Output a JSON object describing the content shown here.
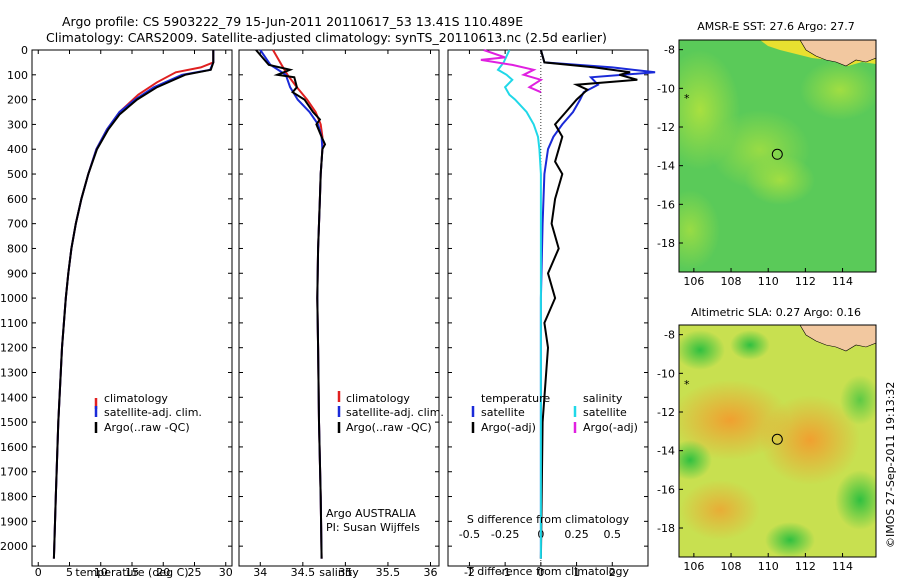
{
  "header": {
    "line1": "Argo profile: CS 5903222_79 15-Jun-2011 20110617_53 13.41S 110.489E",
    "line2": "Climatology: CARS2009. Satellite-adjusted climatology: synTS_20110613.nc (2.5d earlier)"
  },
  "colors": {
    "climatology": "#e02020",
    "satellite": "#1a2ad8",
    "argo": "#000000",
    "salinity_satellite": "#20d8e8",
    "salinity_argo": "#e020e0"
  },
  "footer": {
    "credit": "©IMOS 27-Sep-2011 19:13:32"
  },
  "chart_data": [
    {
      "id": "temperature",
      "type": "line",
      "xlabel": "temperature (deg C)",
      "ylabel": "",
      "xlim": [
        -1,
        31
      ],
      "ylim": [
        2080,
        0
      ],
      "xticks": [
        0,
        5,
        10,
        15,
        20,
        25,
        30
      ],
      "yticks": [
        0,
        100,
        200,
        300,
        400,
        500,
        600,
        700,
        800,
        900,
        1000,
        1100,
        1200,
        1300,
        1400,
        1500,
        1600,
        1700,
        1800,
        1900,
        2000
      ],
      "legend": [
        "climatology",
        "satellite-adj. clim.",
        "Argo(..raw -QC)"
      ],
      "series": [
        {
          "name": "climatology",
          "color": "#e02020",
          "depth": [
            0,
            50,
            70,
            90,
            130,
            180,
            250,
            320,
            400,
            500,
            600,
            700,
            800,
            900,
            1000,
            1200,
            1500,
            1800,
            2050
          ],
          "values": [
            28,
            28,
            26,
            22,
            19,
            16,
            13,
            11,
            9.3,
            8,
            6.9,
            6,
            5.3,
            4.8,
            4.4,
            3.8,
            3.2,
            2.8,
            2.5
          ]
        },
        {
          "name": "satellite-adj. clim.",
          "color": "#1a2ad8",
          "depth": [
            0,
            50,
            80,
            100,
            150,
            200,
            250,
            320,
            400,
            500,
            600,
            700,
            800,
            900,
            1000,
            1200,
            1500,
            1800,
            2050
          ],
          "values": [
            28,
            28,
            27.5,
            23,
            18.5,
            15.5,
            13,
            11,
            9.3,
            8,
            6.9,
            6,
            5.3,
            4.8,
            4.4,
            3.8,
            3.2,
            2.8,
            2.5
          ]
        },
        {
          "name": "Argo(..raw -QC)",
          "color": "#000000",
          "depth": [
            0,
            50,
            80,
            100,
            150,
            200,
            260,
            320,
            400,
            500,
            600,
            700,
            800,
            900,
            1000,
            1200,
            1500,
            1800,
            2050
          ],
          "values": [
            28,
            28,
            27.6,
            23.5,
            19,
            15.8,
            13,
            11.2,
            9.4,
            8,
            6.9,
            6,
            5.3,
            4.8,
            4.4,
            3.8,
            3.2,
            2.8,
            2.5
          ]
        }
      ]
    },
    {
      "id": "salinity",
      "type": "line",
      "xlabel": "salinity",
      "xlim": [
        33.75,
        36.1
      ],
      "ylim": [
        2080,
        0
      ],
      "xticks": [
        34,
        34.5,
        35,
        35.5,
        36
      ],
      "legend": [
        "climatology",
        "satellite-adj. clim.",
        "Argo(..raw -QC)"
      ],
      "annotations": [
        "Argo AUSTRALIA",
        "PI: Susan Wijffels"
      ],
      "series": [
        {
          "name": "climatology",
          "color": "#e02020",
          "depth": [
            0,
            60,
            100,
            150,
            200,
            250,
            300,
            350,
            400,
            500,
            600,
            800,
            1000,
            1200,
            1500,
            1800,
            2050
          ],
          "values": [
            34.15,
            34.25,
            34.32,
            34.43,
            34.55,
            34.65,
            34.71,
            34.73,
            34.73,
            34.71,
            34.7,
            34.68,
            34.67,
            34.68,
            34.69,
            34.71,
            34.72
          ]
        },
        {
          "name": "satellite-adj. clim.",
          "color": "#1a2ad8",
          "depth": [
            0,
            60,
            100,
            150,
            200,
            250,
            300,
            350,
            400,
            500,
            600,
            800,
            1000,
            1200,
            1500,
            1800,
            2050
          ],
          "values": [
            34.0,
            34.12,
            34.3,
            34.35,
            34.44,
            34.58,
            34.68,
            34.72,
            34.73,
            34.71,
            34.7,
            34.68,
            34.67,
            34.68,
            34.69,
            34.71,
            34.72
          ]
        },
        {
          "name": "Argo(..raw -QC)",
          "color": "#000000",
          "depth": [
            0,
            60,
            80,
            100,
            110,
            150,
            170,
            200,
            250,
            280,
            300,
            350,
            380,
            400,
            500,
            600,
            800,
            1000,
            1200,
            1500,
            1800,
            2050
          ],
          "values": [
            33.95,
            34.1,
            34.35,
            34.2,
            34.4,
            34.43,
            34.38,
            34.52,
            34.62,
            34.7,
            34.66,
            34.72,
            34.76,
            34.73,
            34.71,
            34.7,
            34.68,
            34.67,
            34.68,
            34.69,
            34.71,
            34.72
          ]
        }
      ]
    },
    {
      "id": "difference",
      "type": "line",
      "xlabel": "T difference from climatology",
      "xlabel_top": "S difference from climatology",
      "xlim": [
        -2.6,
        3.0
      ],
      "ylim": [
        2080,
        0
      ],
      "xticks": [
        -2,
        -1,
        0,
        1,
        2
      ],
      "xticks_s": [
        -0.5,
        -0.25,
        0,
        0.25,
        0.5
      ],
      "legend_headers": [
        "temperature",
        "salinity"
      ],
      "legend": [
        "satellite",
        "Argo(-adj)",
        "satellite",
        "Argo(-adj)"
      ],
      "series": [
        {
          "name": "temperature satellite",
          "color": "#1a2ad8",
          "depth": [
            0,
            50,
            70,
            90,
            110,
            140,
            170,
            200,
            250,
            300,
            350,
            400,
            500,
            700,
            1000,
            1500,
            2050
          ],
          "values": [
            0,
            0.1,
            2,
            3.2,
            1.4,
            1.6,
            1.2,
            1.1,
            0.9,
            0.6,
            0.35,
            0.2,
            0.1,
            0.05,
            0,
            0,
            0
          ]
        },
        {
          "name": "temperature Argo(-adj)",
          "color": "#000000",
          "depth": [
            0,
            50,
            70,
            90,
            100,
            120,
            140,
            160,
            200,
            250,
            300,
            350,
            400,
            450,
            500,
            600,
            700,
            800,
            900,
            1000,
            1100,
            1200,
            1500,
            2050
          ],
          "values": [
            0,
            0.1,
            1.5,
            2.5,
            2.2,
            2.7,
            1.0,
            1.3,
            1.0,
            0.7,
            0.4,
            0.6,
            0.5,
            0.4,
            0.6,
            0.4,
            0.3,
            0.5,
            0.2,
            0.4,
            0.1,
            0.2,
            0.05,
            0
          ]
        },
        {
          "name": "salinity satellite",
          "color": "#20d8e8",
          "depth": [
            0,
            50,
            80,
            100,
            120,
            150,
            180,
            200,
            250,
            300,
            350,
            400,
            500,
            700,
            1000,
            1500,
            2050
          ],
          "values": [
            -0.22,
            -0.26,
            -0.3,
            -0.24,
            -0.2,
            -0.25,
            -0.22,
            -0.18,
            -0.1,
            -0.05,
            -0.02,
            -0.01,
            0,
            0,
            0,
            0,
            0
          ]
        },
        {
          "name": "salinity Argo(-adj)",
          "color": "#e020e0",
          "depth": [
            0,
            30,
            40,
            60,
            80,
            100,
            120,
            150,
            170
          ],
          "values": [
            -0.4,
            -0.25,
            -0.42,
            -0.2,
            -0.05,
            -0.12,
            0,
            -0.08,
            0
          ]
        }
      ]
    },
    {
      "id": "sst_map",
      "type": "heatmap",
      "title": "AMSR-E SST: 27.6 Argo: 27.7",
      "xticks": [
        106,
        108,
        110,
        112,
        114
      ],
      "yticks": [
        -8,
        -10,
        -12,
        -14,
        -16,
        -18
      ],
      "xlim": [
        105.2,
        115.8
      ],
      "ylim": [
        -19.5,
        -7.5
      ],
      "marker_lon": 110.489,
      "marker_lat": -13.41
    },
    {
      "id": "sla_map",
      "type": "heatmap",
      "title": "Altimetric SLA: 0.27 Argo: 0.16",
      "xticks": [
        106,
        108,
        110,
        112,
        114
      ],
      "yticks": [
        -8,
        -10,
        -12,
        -14,
        -16,
        -18
      ],
      "xlim": [
        105.2,
        115.8
      ],
      "ylim": [
        -19.5,
        -7.5
      ],
      "marker_lon": 110.489,
      "marker_lat": -13.41
    }
  ]
}
